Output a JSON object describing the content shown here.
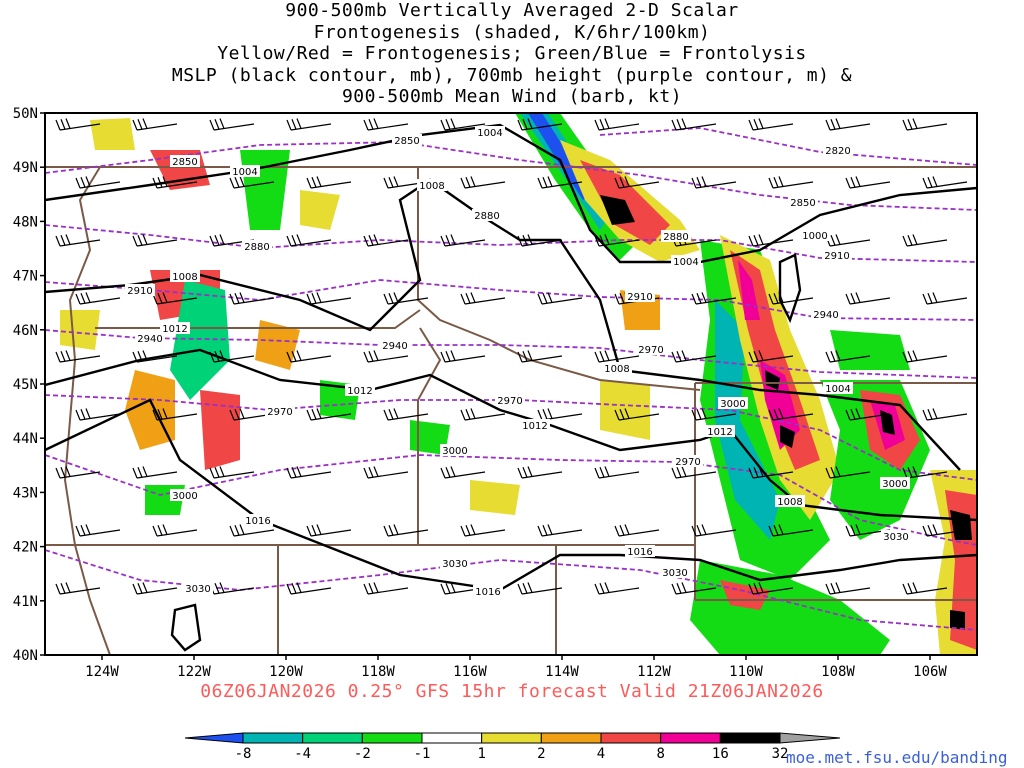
{
  "title_lines": [
    "900-500mb Vertically Averaged 2-D Scalar",
    "Frontogenesis (shaded, K/6hr/100km)",
    "Yellow/Red = Frontogenesis;  Green/Blue = Frontolysis",
    "MSLP (black contour, mb), 700mb height (purple contour, m) &",
    "900-500mb Mean Wind (barb, kt)"
  ],
  "footer": "06Z06JAN2026 0.25° GFS 15hr forecast Valid 21Z06JAN2026",
  "credit": "moe.met.fsu.edu/banding",
  "axes": {
    "lat_labels": [
      "50N",
      "49N",
      "48N",
      "47N",
      "46N",
      "45N",
      "44N",
      "43N",
      "42N",
      "41N",
      "40N"
    ],
    "lon_labels": [
      "124W",
      "122W",
      "120W",
      "118W",
      "116W",
      "114W",
      "112W",
      "110W",
      "108W",
      "106W"
    ]
  },
  "colorbar": {
    "labels": [
      "-8",
      "-4",
      "-2",
      "-1",
      "1",
      "2",
      "4",
      "8",
      "16",
      "32"
    ],
    "colors": [
      "#1e50f0",
      "#00b4b4",
      "#00d278",
      "#14dc14",
      "#ffffff",
      "#e6dc32",
      "#f0a014",
      "#f04646",
      "#f00096",
      "#000000",
      "#a0a0a0"
    ]
  },
  "colors": {
    "mslp_contour": "#000000",
    "height_contour": "#9b30c8",
    "border": "#7a5a46"
  },
  "contour_labels": {
    "mslp": [
      "1004",
      "1004",
      "1008",
      "1008",
      "1012",
      "1012",
      "1008",
      "1012",
      "1016",
      "1016",
      "1008",
      "1012",
      "1016",
      "1004",
      "1004",
      "1000",
      "1004"
    ],
    "height": [
      "2850",
      "2850",
      "2880",
      "2910",
      "2940",
      "2940",
      "2970",
      "2970",
      "3000",
      "3000",
      "3030",
      "3030",
      "2820",
      "2850",
      "2880",
      "2880",
      "2910",
      "2910",
      "2940",
      "2970",
      "3000",
      "2970",
      "3000",
      "3030",
      "3030"
    ]
  }
}
